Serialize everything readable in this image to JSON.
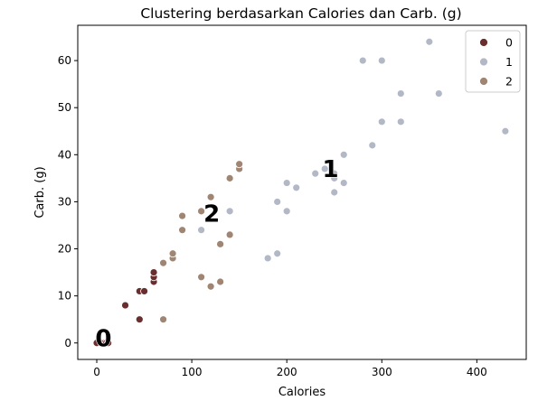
{
  "chart_data": {
    "type": "scatter",
    "title": "Clustering berdasarkan Calories dan Carb. (g)",
    "xlabel": "Calories",
    "ylabel": "Carb. (g)",
    "xlim": [
      -20,
      452
    ],
    "ylim": [
      -3.5,
      67.5
    ],
    "xticks": [
      0,
      100,
      200,
      300,
      400
    ],
    "yticks": [
      0,
      10,
      20,
      30,
      40,
      50,
      60
    ],
    "xtick_labels": [
      "0",
      "100",
      "200",
      "300",
      "400"
    ],
    "ytick_labels": [
      "0",
      "10",
      "20",
      "30",
      "40",
      "50",
      "60"
    ],
    "grid": false,
    "legend_position": "top-right",
    "series": [
      {
        "name": "0",
        "color": "#6b2e2e",
        "points": [
          [
            0,
            0
          ],
          [
            5,
            0
          ],
          [
            8,
            0
          ],
          [
            10,
            0
          ],
          [
            12,
            0
          ],
          [
            30,
            8
          ],
          [
            45,
            5
          ],
          [
            45,
            11
          ],
          [
            50,
            11
          ],
          [
            60,
            13
          ],
          [
            60,
            14
          ],
          [
            60,
            15
          ]
        ]
      },
      {
        "name": "1",
        "color": "#b3b8c6",
        "points": [
          [
            110,
            24
          ],
          [
            140,
            28
          ],
          [
            180,
            18
          ],
          [
            190,
            19
          ],
          [
            190,
            30
          ],
          [
            200,
            28
          ],
          [
            200,
            34
          ],
          [
            210,
            33
          ],
          [
            230,
            36
          ],
          [
            240,
            37
          ],
          [
            250,
            32
          ],
          [
            250,
            35
          ],
          [
            250,
            36
          ],
          [
            260,
            34
          ],
          [
            260,
            40
          ],
          [
            280,
            60
          ],
          [
            290,
            42
          ],
          [
            300,
            47
          ],
          [
            300,
            60
          ],
          [
            320,
            47
          ],
          [
            320,
            53
          ],
          [
            350,
            64
          ],
          [
            360,
            53
          ],
          [
            430,
            45
          ]
        ]
      },
      {
        "name": "2",
        "color": "#a08572",
        "points": [
          [
            70,
            5
          ],
          [
            70,
            17
          ],
          [
            80,
            18
          ],
          [
            80,
            19
          ],
          [
            90,
            24
          ],
          [
            90,
            27
          ],
          [
            110,
            14
          ],
          [
            110,
            28
          ],
          [
            120,
            12
          ],
          [
            120,
            31
          ],
          [
            130,
            13
          ],
          [
            130,
            21
          ],
          [
            140,
            23
          ],
          [
            140,
            35
          ],
          [
            150,
            37
          ],
          [
            150,
            38
          ]
        ]
      }
    ],
    "annotations": [
      {
        "text": "0",
        "x": 7,
        "y": 1
      },
      {
        "text": "1",
        "x": 246,
        "y": 37
      },
      {
        "text": "2",
        "x": 121,
        "y": 27.5
      }
    ]
  }
}
